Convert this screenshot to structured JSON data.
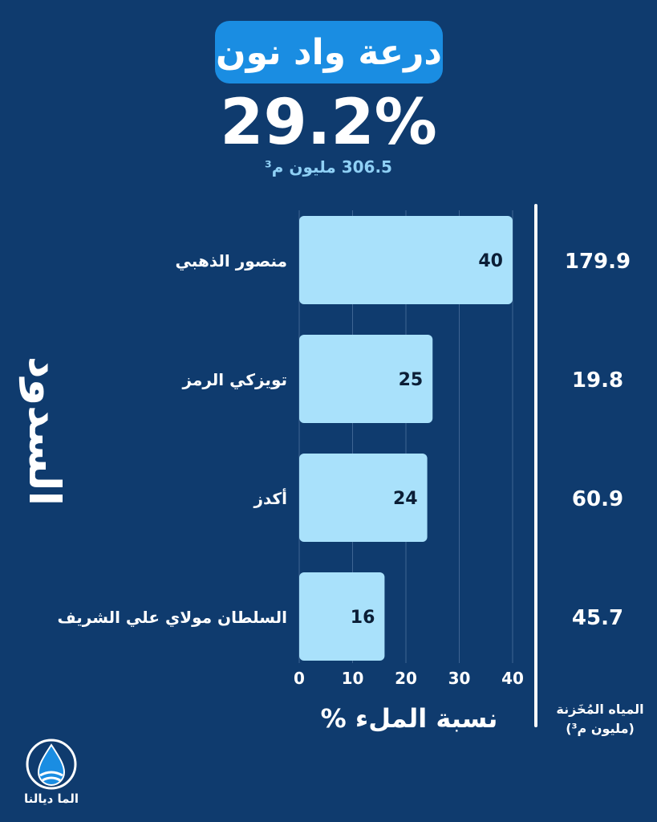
{
  "title": "درعة واد نون",
  "headline_value": "29.2%",
  "headline_sub": "306.5 مليون م³",
  "side_label": "السدود",
  "stored_caption": {
    "line1": "المياه المُخَزنة",
    "line2": "(مليون م³)"
  },
  "brand": {
    "name": "الما ديالنا"
  },
  "colors": {
    "background": "#0f3b6e",
    "bar": "#a9e1fb",
    "title_pill": "#1a8de2",
    "accent_text": "#8fd0f5"
  },
  "chart_data": {
    "type": "bar",
    "orientation": "horizontal",
    "categories": [
      "منصور الذهبي",
      "تويزكي الرمز",
      "أكدز",
      "السلطان مولاي علي الشريف"
    ],
    "values": [
      40,
      25,
      24,
      16
    ],
    "stored_volume": [
      "179.9",
      "19.8",
      "60.9",
      "45.7"
    ],
    "xlabel": "نسبة الملء %",
    "xticks": [
      0,
      10,
      20,
      30,
      40
    ],
    "xlim": [
      0,
      40
    ],
    "grid": true
  }
}
